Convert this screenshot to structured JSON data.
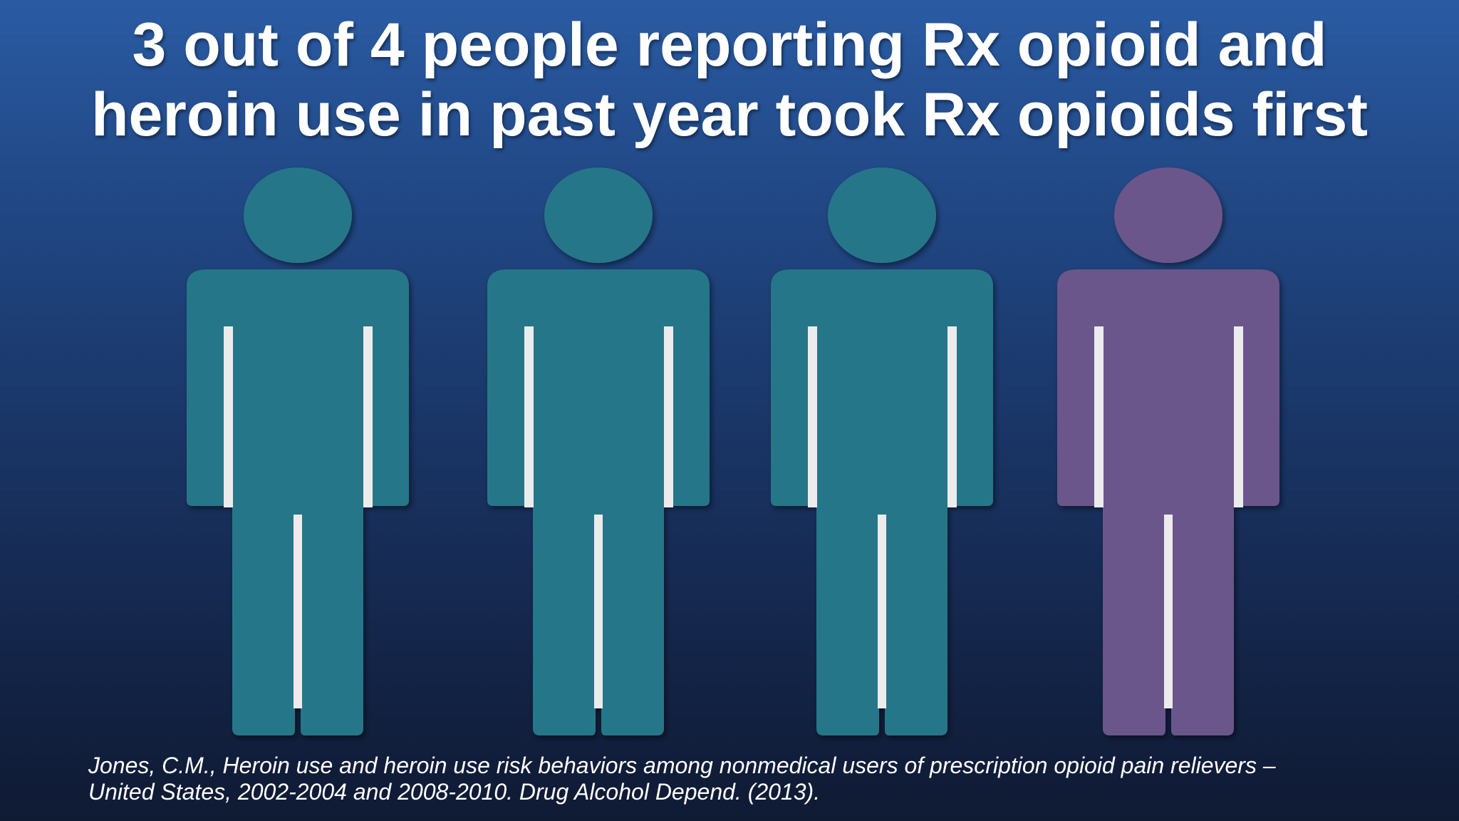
{
  "slide": {
    "title_line1": "3 out of 4 people reporting Rx opioid and",
    "title_line2": "heroin use in past year took Rx opioids first",
    "citation_line1": "Jones, C.M., Heroin use and heroin use risk behaviors among nonmedical users of prescription opioid pain relievers –",
    "citation_line2": "United States, 2002-2004 and 2008-2010. Drug Alcohol Depend. (2013)."
  },
  "figures": [
    {
      "icon": "person-icon",
      "color": "#277689"
    },
    {
      "icon": "person-icon",
      "color": "#277689"
    },
    {
      "icon": "person-icon",
      "color": "#277689"
    },
    {
      "icon": "person-icon",
      "color": "#6b578b"
    }
  ]
}
